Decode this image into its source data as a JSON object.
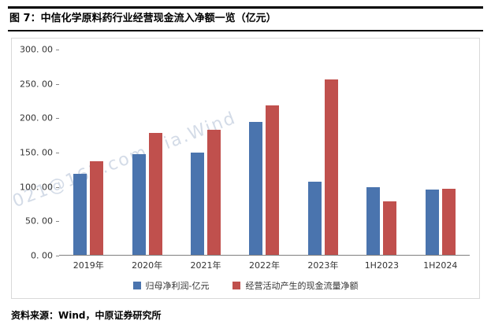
{
  "title": "图 7：中信化学原料药行业经营现金流入净额一览（亿元）",
  "footer": {
    "source": "资料来源：Wind，中原证券研究所"
  },
  "watermark": "021@163.com.via.Wind",
  "chart_data": {
    "type": "bar",
    "title": "中信化学原料药行业经营现金流入净额一览（亿元）",
    "categories": [
      "2019年",
      "2020年",
      "2021年",
      "2022年",
      "2023年",
      "1H2023",
      "1H2024"
    ],
    "series": [
      {
        "name": "归母净利润-亿元",
        "color": "#4a74ae",
        "values": [
          118,
          147,
          149,
          194,
          107,
          99,
          95
        ]
      },
      {
        "name": "经营活动产生的现金流量净额",
        "color": "#c0504d",
        "values": [
          137,
          178,
          183,
          218,
          256,
          78,
          97
        ]
      }
    ],
    "xlabel": "",
    "ylabel": "",
    "ylim": [
      0,
      300
    ],
    "ytick_step": 50,
    "ytick_labels": [
      "300. 00",
      "250. 00",
      "200. 00",
      "150. 00",
      "100. 00",
      "50. 00",
      "0. 00"
    ],
    "grid": false,
    "legend_position": "bottom"
  }
}
